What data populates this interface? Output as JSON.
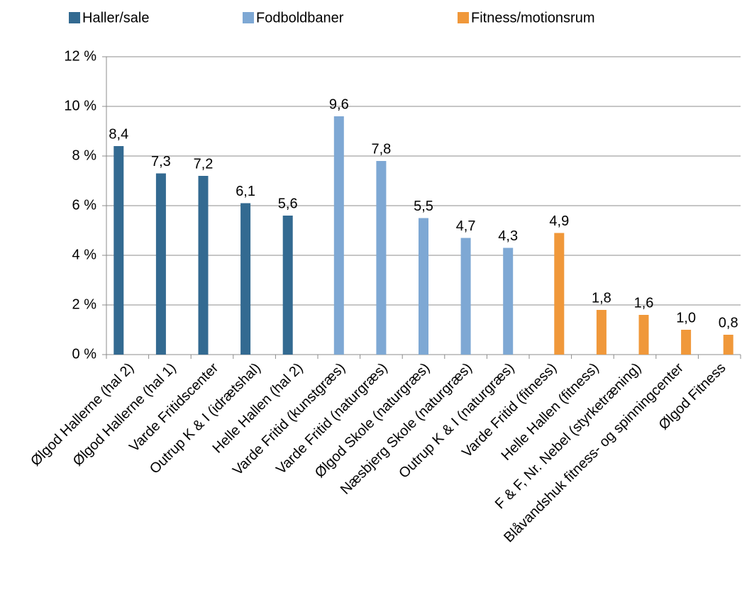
{
  "chart_data": {
    "type": "bar",
    "categories": [
      "Ølgod Hallerne (hal 2)",
      "Ølgod Hallerne (hal 1)",
      "Varde Fritidscenter",
      "Outrup K & I (idrætshal)",
      "Helle Hallen (hal 2)",
      "Varde Fritid (kunstgræs)",
      "Varde Fritid (naturgræs)",
      "Ølgod Skole (naturgræs)",
      "Næsbjerg Skole (naturgræs)",
      "Outrup K & I (naturgræs)",
      "Varde Fritid (fitness)",
      "Helle Hallen (fitness)",
      "F & F, Nr. Nebel (styrketræning)",
      "Blåvandshuk fitness- og spinningcenter",
      "Ølgod Fitness"
    ],
    "series": [
      {
        "name": "Haller/sale",
        "color": "#336a91",
        "values": [
          8.4,
          7.3,
          7.2,
          6.1,
          5.6,
          null,
          null,
          null,
          null,
          null,
          null,
          null,
          null,
          null,
          null
        ],
        "value_labels": [
          "8,4",
          "7,3",
          "7,2",
          "6,1",
          "5,6",
          null,
          null,
          null,
          null,
          null,
          null,
          null,
          null,
          null,
          null
        ]
      },
      {
        "name": "Fodboldbaner",
        "color": "#7ea8d4",
        "values": [
          null,
          null,
          null,
          null,
          null,
          9.6,
          7.8,
          5.5,
          4.7,
          4.3,
          null,
          null,
          null,
          null,
          null
        ],
        "value_labels": [
          null,
          null,
          null,
          null,
          null,
          "9,6",
          "7,8",
          "5,5",
          "4,7",
          "4,3",
          null,
          null,
          null,
          null,
          null
        ]
      },
      {
        "name": "Fitness/motionsrum",
        "color": "#f0983a",
        "values": [
          null,
          null,
          null,
          null,
          null,
          null,
          null,
          null,
          null,
          null,
          4.9,
          1.8,
          1.6,
          1.0,
          0.8
        ],
        "value_labels": [
          null,
          null,
          null,
          null,
          null,
          null,
          null,
          null,
          null,
          null,
          "4,9",
          "1,8",
          "1,6",
          "1,0",
          "0,8"
        ]
      }
    ],
    "ylim": [
      0,
      12
    ],
    "yticks": [
      {
        "value": 0,
        "label": "0 %"
      },
      {
        "value": 2,
        "label": "2 %"
      },
      {
        "value": 4,
        "label": "4 %"
      },
      {
        "value": 6,
        "label": "6 %"
      },
      {
        "value": 8,
        "label": "8 %"
      },
      {
        "value": 10,
        "label": "10 %"
      },
      {
        "value": 12,
        "label": "12 %"
      }
    ],
    "grid": true,
    "legend": "top"
  }
}
